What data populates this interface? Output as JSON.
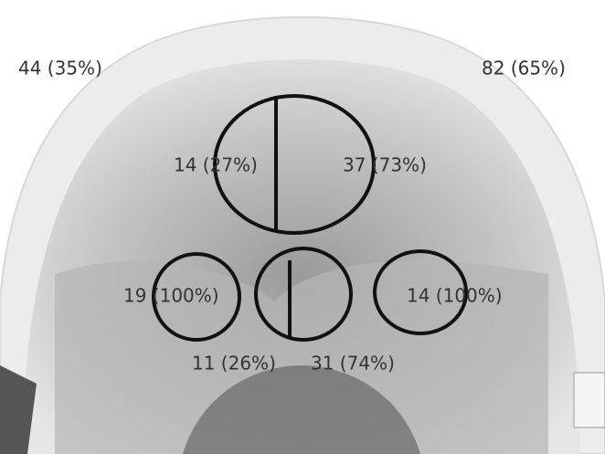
{
  "labels": [
    "44 (35%)",
    "82 (65%)",
    "14 (27%)",
    "37 (73%)",
    "19 (100%)",
    "14 (100%)",
    "11 (26%)",
    "31 (74%)"
  ]
}
